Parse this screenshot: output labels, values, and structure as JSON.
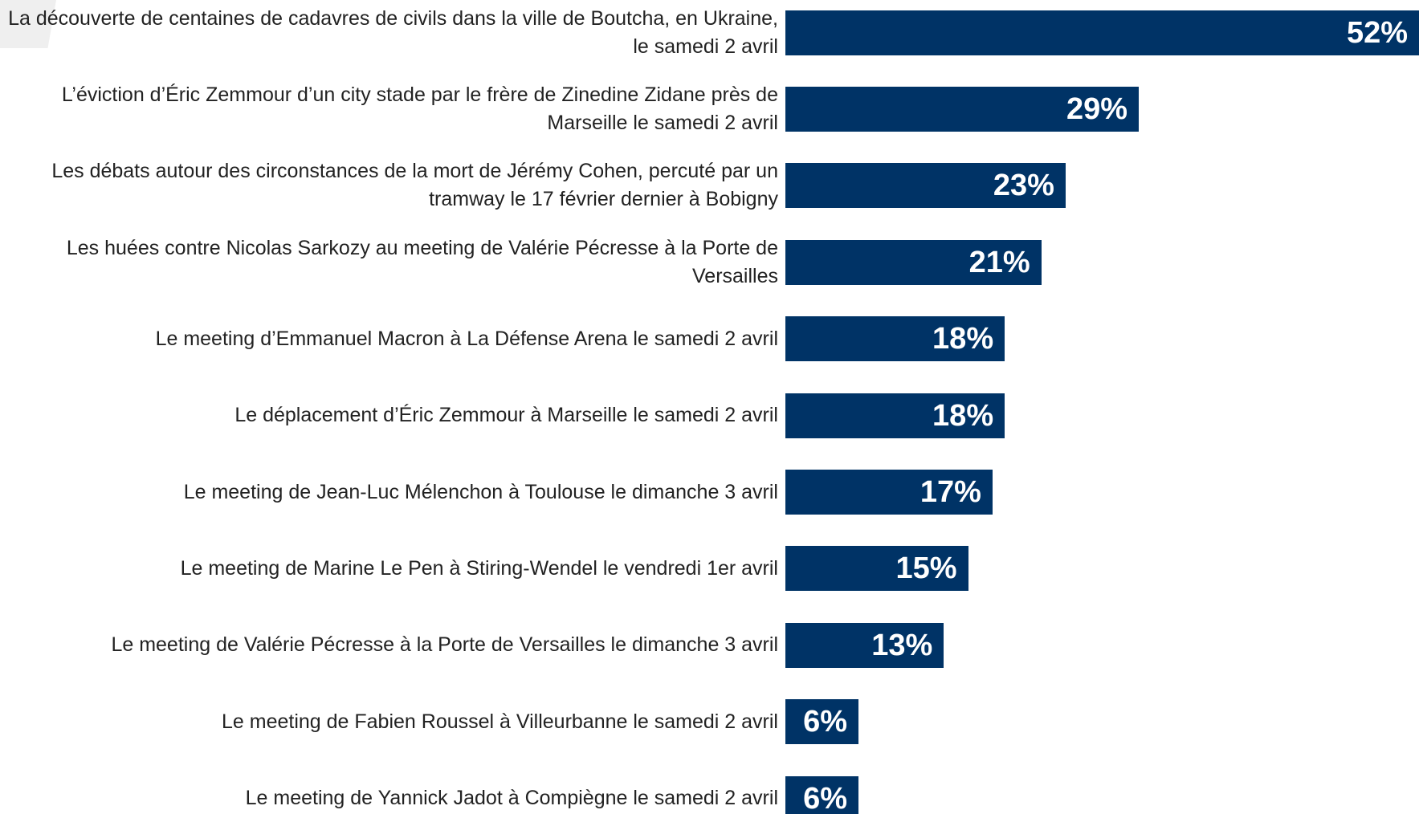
{
  "chart_data": {
    "type": "bar",
    "orientation": "horizontal",
    "color": "#003366",
    "categories": [
      "La découverte de centaines de cadavres de civils dans la ville de Boutcha, en Ukraine, le samedi 2 avril",
      "L’éviction d’Éric Zemmour d’un city stade par le frère de Zinedine Zidane près de Marseille le samedi 2 avril",
      "Les débats autour des circonstances de la mort de Jérémy Cohen, percuté par un tramway le 17 février dernier à Bobigny",
      "Les huées contre Nicolas Sarkozy au meeting de Valérie Pécresse à la Porte de Versailles",
      "Le meeting d’Emmanuel Macron à La Défense Arena le samedi 2 avril",
      "Le déplacement d’Éric Zemmour à Marseille le samedi 2 avril",
      "Le meeting de Jean-Luc Mélenchon à Toulouse le dimanche 3 avril",
      "Le meeting de Marine Le Pen  à Stiring-Wendel le vendredi 1er avril",
      "Le meeting de Valérie Pécresse à la Porte de Versailles le dimanche 3 avril",
      "Le meeting de Fabien Roussel à Villeurbanne le samedi 2 avril",
      "Le meeting de Yannick Jadot à Compiègne le samedi 2 avril"
    ],
    "values": [
      52,
      29,
      23,
      21,
      18,
      18,
      17,
      15,
      13,
      6,
      6
    ],
    "value_labels": [
      "52%",
      "29%",
      "23%",
      "21%",
      "18%",
      "18%",
      "17%",
      "15%",
      "13%",
      "6%",
      "6%"
    ]
  }
}
